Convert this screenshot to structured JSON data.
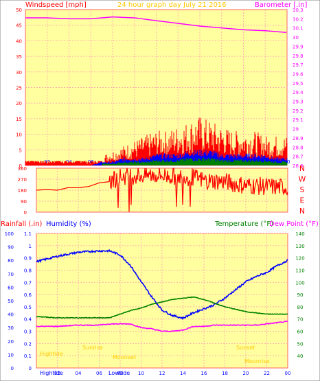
{
  "header": {
    "windspeed_label": "Windspeed [mph]",
    "title": "24 hour graph day  July 21 2016",
    "barometer_label": "Barometer [.in]"
  },
  "panel3_labels": {
    "rainfall": "Rainfall (.in)",
    "humidity": "Humidity (%)",
    "temperature": "Temperature (°F)",
    "dewpoint": "Dew Point (°F)"
  },
  "compass": [
    "N",
    "W",
    "S",
    "E",
    "N"
  ],
  "hours": [
    "02",
    "04",
    "06",
    "08",
    "10",
    "12",
    "14",
    "16",
    "18",
    "20",
    "22",
    "00"
  ],
  "bottom_axis_labels": {
    "hightide_left": "Hightide",
    "lowtide": "Lowtide",
    "hightide_right": "Hightide",
    "lowtide_right": "Lowtide"
  },
  "event_labels": {
    "left_hightide": "Hightide",
    "sunrise": "Sunrise",
    "moonset": "Moonset",
    "sunset": "Sunset",
    "moonrise": "Moonrise"
  },
  "colors": {
    "background": "#ffffa0",
    "outer": "#ffffff",
    "windspeed": "#ff0000",
    "gust": "#ff0000",
    "average": "#0000ff",
    "calm": "#008000",
    "barometer": "#ff00ff",
    "direction": "#ff0000",
    "humidity": "#0000ff",
    "temperature": "#008000",
    "dewpoint": "#ff00ff",
    "grid": "#ffb0b0",
    "axis_red": "#ff0000",
    "axis_magenta": "#ff00ff",
    "axis_green": "#008000",
    "axis_blue": "#0000ff",
    "event_yellow": "#ffc800"
  },
  "chart_data": [
    {
      "type": "line",
      "title": "24 hour graph day  July 21 2016",
      "ylabel": "Windspeed [mph]",
      "ylim": [
        0,
        50
      ],
      "yticks": [
        0,
        5,
        10,
        15,
        20,
        25,
        30,
        35,
        40,
        45,
        50
      ],
      "y2label": "Barometer [.in]",
      "y2lim": [
        28.6,
        30.3
      ],
      "y2ticks": [
        "28.6",
        "28.7",
        "28.8",
        "28.9",
        "29",
        "29.1",
        "29.2",
        "29.3",
        "29.4",
        "29.5",
        "29.6",
        "29.7",
        "29.8",
        "29.9",
        "30",
        "30.1",
        "30.2",
        "30.3"
      ],
      "xticks": [
        "02",
        "04",
        "06",
        "08",
        "10",
        "12",
        "14",
        "16",
        "18",
        "20",
        "22",
        "00"
      ],
      "series": [
        {
          "name": "Windspeed [mph]",
          "axis": "left",
          "x": [
            0,
            1,
            2,
            3,
            4,
            5,
            6,
            7,
            8,
            9,
            10,
            11,
            12,
            13,
            14,
            15,
            16,
            17,
            18,
            19,
            20,
            21,
            22,
            23,
            24
          ],
          "values": [
            2,
            2,
            1,
            2,
            1,
            2,
            1,
            2,
            3,
            4,
            5,
            6,
            7,
            7,
            8,
            9,
            10,
            9,
            8,
            7,
            7,
            7,
            6,
            6,
            6
          ]
        },
        {
          "name": "Average",
          "axis": "left",
          "x": [
            0,
            1,
            2,
            3,
            4,
            5,
            6,
            7,
            8,
            9,
            10,
            11,
            12,
            13,
            14,
            15,
            16,
            17,
            18,
            19,
            20,
            21,
            22,
            23,
            24
          ],
          "values": [
            0,
            0,
            0,
            0,
            0,
            0,
            0,
            1,
            1,
            2,
            2,
            2,
            3,
            3,
            3,
            4,
            4,
            4,
            3,
            3,
            3,
            3,
            3,
            2,
            2
          ]
        },
        {
          "name": "Barometer [.in]",
          "axis": "right",
          "x": [
            0,
            2,
            4,
            6,
            8,
            10,
            12,
            14,
            16,
            18,
            20,
            22,
            24
          ],
          "values": [
            30.21,
            30.21,
            30.2,
            30.2,
            30.22,
            30.21,
            30.18,
            30.15,
            30.12,
            30.1,
            30.08,
            30.07,
            30.05
          ]
        }
      ]
    },
    {
      "type": "line",
      "ylabel": "Wind direction",
      "ylim": [
        0,
        360
      ],
      "yticks": [
        0,
        90,
        180,
        270,
        360
      ],
      "series": [
        {
          "name": "Direction",
          "x": [
            0,
            1,
            2,
            3,
            4,
            5,
            6,
            7,
            8,
            9,
            10,
            11,
            12,
            13,
            14,
            15,
            16,
            17,
            18,
            19,
            20,
            21,
            22,
            23,
            24
          ],
          "values": [
            180,
            185,
            180,
            200,
            200,
            210,
            240,
            250,
            290,
            300,
            300,
            305,
            300,
            295,
            290,
            285,
            260,
            255,
            250,
            230,
            220,
            215,
            210,
            205,
            205
          ]
        }
      ]
    },
    {
      "type": "line",
      "y1label": "Rainfall (.in)",
      "y1lim": [
        0,
        1.1
      ],
      "y1ticks": [
        "0",
        "0.1",
        "0.2",
        "0.3",
        "0.4",
        "0.5",
        "0.6",
        "0.7",
        "0.8",
        "0.9",
        "1",
        "1.1"
      ],
      "y0label": "Humidity (%)",
      "y0lim": [
        0,
        100
      ],
      "y0ticks": [
        0,
        10,
        20,
        30,
        40,
        50,
        60,
        70,
        80,
        90,
        100
      ],
      "y2label": "Temperature (°F)",
      "y2lim": [
        30,
        140
      ],
      "y2ticks": [
        40,
        50,
        60,
        70,
        80,
        90,
        100,
        110,
        120,
        130,
        140
      ],
      "xticks": [
        "02",
        "04",
        "06",
        "08",
        "10",
        "12",
        "14",
        "16",
        "18",
        "20",
        "22",
        "00"
      ],
      "series": [
        {
          "name": "Humidity (%)",
          "axis": "humidity",
          "x": [
            0,
            2,
            4,
            6,
            7,
            8,
            9,
            10,
            11,
            12,
            13,
            14,
            15,
            16,
            17,
            18,
            19,
            20,
            21,
            22,
            23,
            24
          ],
          "values": [
            79,
            83,
            86,
            87,
            87,
            84,
            76,
            64,
            53,
            43,
            39,
            37,
            41,
            44,
            47,
            52,
            58,
            64,
            68,
            71,
            76,
            80
          ]
        },
        {
          "name": "Temperature (°F)",
          "axis": "temperature",
          "x": [
            0,
            2,
            4,
            6,
            7,
            8,
            9,
            10,
            11,
            12,
            13,
            14,
            15,
            16,
            17,
            18,
            19,
            20,
            21,
            22,
            23,
            24
          ],
          "values": [
            72,
            71,
            71,
            71,
            71,
            74,
            77,
            79,
            82,
            84,
            86,
            87,
            88,
            86,
            83,
            80,
            78,
            76,
            75,
            74,
            74,
            74
          ]
        },
        {
          "name": "Dew Point (°F)",
          "axis": "temperature",
          "x": [
            0,
            2,
            4,
            6,
            7,
            8,
            9,
            10,
            11,
            12,
            13,
            14,
            15,
            16,
            17,
            18,
            19,
            20,
            21,
            22,
            23,
            24
          ],
          "values": [
            64,
            64,
            65,
            65,
            66,
            66,
            66,
            63,
            62,
            60,
            60,
            61,
            64,
            64,
            65,
            65,
            65,
            65,
            65,
            66,
            67,
            68
          ]
        }
      ]
    }
  ]
}
